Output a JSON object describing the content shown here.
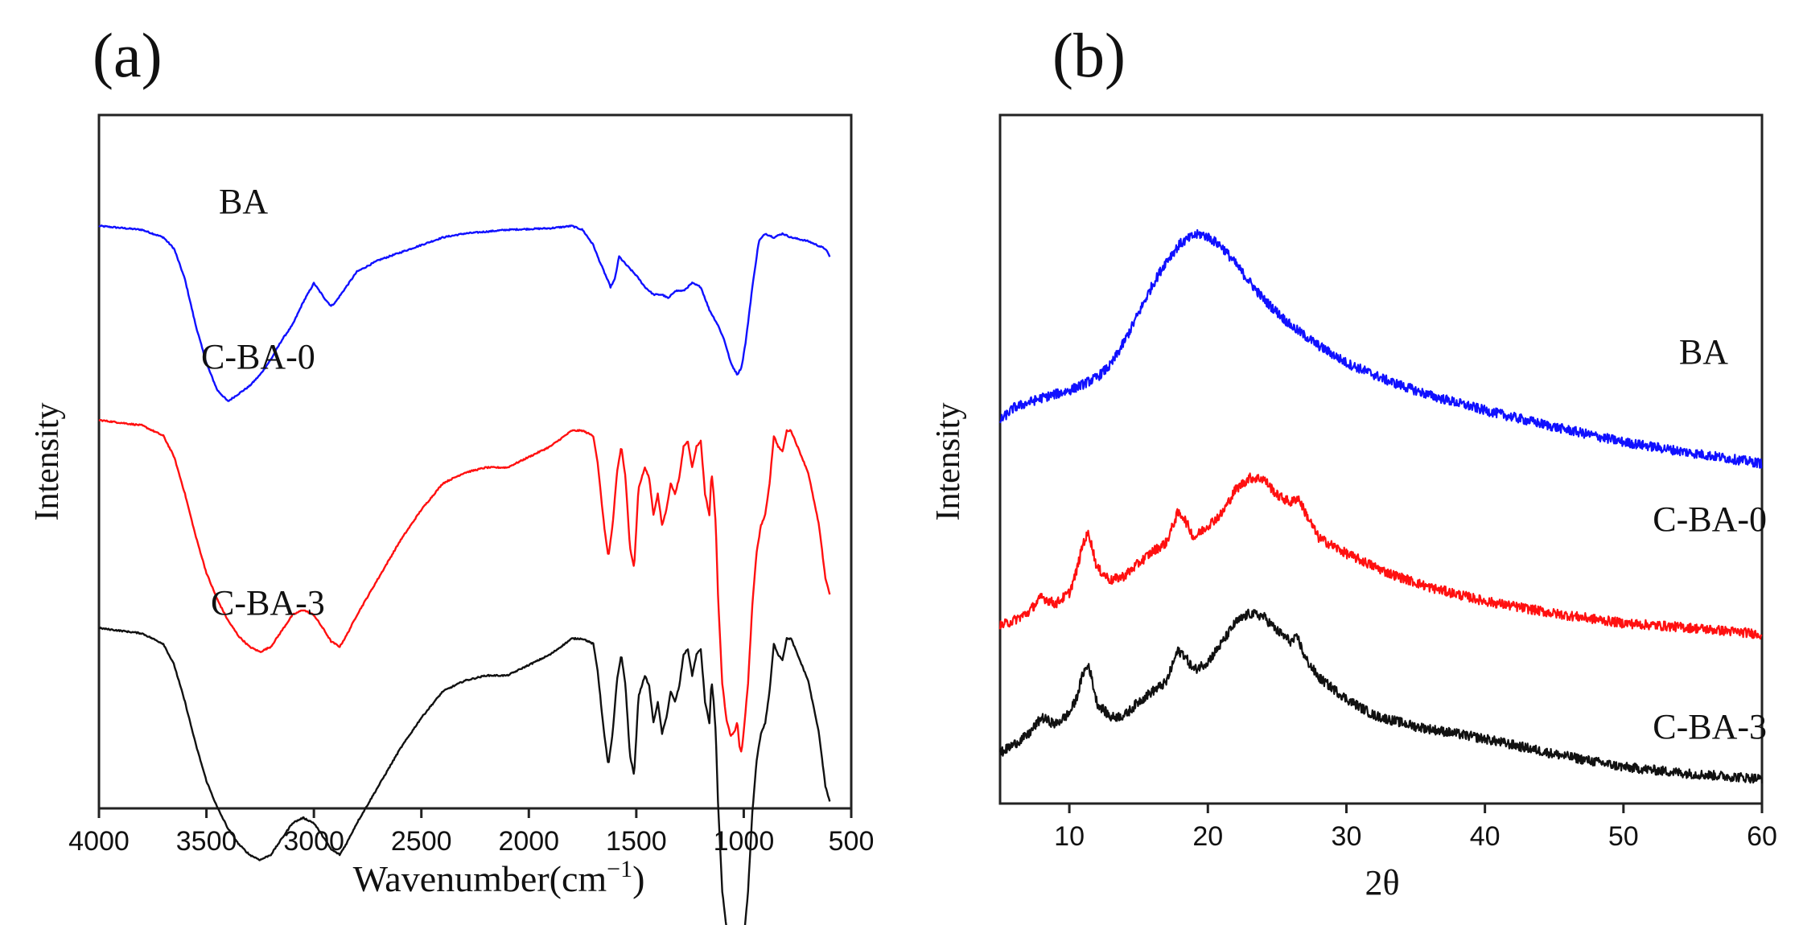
{
  "chart_data": [
    {
      "panel_label": "(a)",
      "type": "line",
      "xlabel_base": "Wavenumber(cm",
      "xlabel_exp": "−1",
      "xlabel_close": ")",
      "ylabel": "Intensity",
      "xlim": [
        4000,
        500
      ],
      "xticks": [
        "4000",
        "3500",
        "3000",
        "2500",
        "2000",
        "1500",
        "1000",
        "500"
      ],
      "yticks_shown": false,
      "series": [
        {
          "name": "BA",
          "color": "#1010ff",
          "offset": 0.84,
          "amp": 0.55,
          "x": [
            4000,
            3800,
            3700,
            3650,
            3600,
            3550,
            3500,
            3450,
            3400,
            3350,
            3300,
            3250,
            3200,
            3150,
            3100,
            3050,
            3000,
            2950,
            2920,
            2900,
            2850,
            2800,
            2700,
            2600,
            2500,
            2400,
            2300,
            2200,
            2100,
            2000,
            1900,
            1800,
            1750,
            1700,
            1680,
            1650,
            1620,
            1600,
            1580,
            1550,
            1500,
            1460,
            1420,
            1400,
            1380,
            1350,
            1320,
            1280,
            1240,
            1200,
            1160,
            1120,
            1090,
            1060,
            1030,
            1010,
            990,
            960,
            930,
            900,
            860,
            820,
            780,
            700,
            620,
            600
          ],
          "y": [
            0.0,
            0.01,
            0.03,
            0.06,
            0.14,
            0.26,
            0.36,
            0.43,
            0.46,
            0.44,
            0.42,
            0.39,
            0.35,
            0.3,
            0.26,
            0.2,
            0.15,
            0.19,
            0.21,
            0.2,
            0.16,
            0.12,
            0.09,
            0.07,
            0.05,
            0.03,
            0.02,
            0.015,
            0.01,
            0.008,
            0.006,
            0.0,
            0.01,
            0.05,
            0.08,
            0.12,
            0.16,
            0.14,
            0.08,
            0.1,
            0.13,
            0.16,
            0.18,
            0.18,
            0.18,
            0.19,
            0.17,
            0.17,
            0.15,
            0.16,
            0.22,
            0.26,
            0.3,
            0.36,
            0.39,
            0.37,
            0.3,
            0.16,
            0.04,
            0.02,
            0.03,
            0.02,
            0.03,
            0.04,
            0.06,
            0.08
          ]
        },
        {
          "name": "C-BA-0",
          "color": "#ff1010",
          "offset": 0.56,
          "amp": 0.76,
          "x": [
            4000,
            3800,
            3700,
            3650,
            3600,
            3550,
            3500,
            3450,
            3400,
            3350,
            3300,
            3250,
            3200,
            3150,
            3100,
            3050,
            3000,
            2950,
            2920,
            2880,
            2850,
            2800,
            2700,
            2600,
            2500,
            2400,
            2300,
            2200,
            2100,
            2000,
            1900,
            1800,
            1750,
            1700,
            1680,
            1650,
            1630,
            1610,
            1590,
            1570,
            1550,
            1530,
            1510,
            1490,
            1460,
            1440,
            1420,
            1400,
            1380,
            1360,
            1340,
            1320,
            1300,
            1280,
            1260,
            1240,
            1220,
            1200,
            1180,
            1160,
            1150,
            1140,
            1130,
            1120,
            1100,
            1080,
            1060,
            1040,
            1030,
            1020,
            1010,
            1000,
            980,
            960,
            940,
            920,
            900,
            880,
            860,
            840,
            820,
            800,
            780,
            750,
            700,
            650,
            620,
            600
          ],
          "y": [
            0.0,
            0.01,
            0.03,
            0.07,
            0.14,
            0.22,
            0.29,
            0.34,
            0.38,
            0.41,
            0.43,
            0.44,
            0.43,
            0.4,
            0.37,
            0.36,
            0.37,
            0.4,
            0.42,
            0.43,
            0.41,
            0.37,
            0.3,
            0.23,
            0.17,
            0.12,
            0.1,
            0.09,
            0.09,
            0.07,
            0.05,
            0.02,
            0.02,
            0.03,
            0.08,
            0.2,
            0.26,
            0.2,
            0.1,
            0.05,
            0.11,
            0.24,
            0.28,
            0.13,
            0.09,
            0.11,
            0.18,
            0.14,
            0.2,
            0.17,
            0.12,
            0.14,
            0.11,
            0.05,
            0.04,
            0.09,
            0.05,
            0.04,
            0.14,
            0.18,
            0.1,
            0.14,
            0.2,
            0.33,
            0.5,
            0.57,
            0.6,
            0.59,
            0.57,
            0.62,
            0.63,
            0.59,
            0.5,
            0.35,
            0.25,
            0.2,
            0.18,
            0.12,
            0.03,
            0.05,
            0.06,
            0.02,
            0.02,
            0.05,
            0.1,
            0.2,
            0.3,
            0.33
          ]
        },
        {
          "name": "C-BA-3",
          "color": "#111111",
          "offset": 0.26,
          "amp": 0.76,
          "x": [
            4000,
            3800,
            3700,
            3650,
            3600,
            3550,
            3500,
            3450,
            3400,
            3350,
            3300,
            3250,
            3200,
            3150,
            3100,
            3050,
            3000,
            2950,
            2920,
            2880,
            2850,
            2800,
            2700,
            2600,
            2500,
            2400,
            2300,
            2200,
            2100,
            2000,
            1900,
            1800,
            1750,
            1700,
            1680,
            1650,
            1630,
            1610,
            1590,
            1570,
            1550,
            1530,
            1510,
            1490,
            1460,
            1440,
            1420,
            1400,
            1380,
            1360,
            1340,
            1320,
            1300,
            1280,
            1260,
            1240,
            1220,
            1200,
            1180,
            1160,
            1150,
            1140,
            1130,
            1120,
            1100,
            1080,
            1060,
            1040,
            1030,
            1020,
            1010,
            1000,
            980,
            960,
            940,
            920,
            900,
            880,
            860,
            840,
            820,
            800,
            780,
            750,
            700,
            650,
            620,
            600
          ],
          "y": [
            0.0,
            0.01,
            0.03,
            0.07,
            0.14,
            0.22,
            0.29,
            0.34,
            0.38,
            0.41,
            0.43,
            0.44,
            0.43,
            0.4,
            0.37,
            0.36,
            0.37,
            0.4,
            0.42,
            0.43,
            0.41,
            0.37,
            0.3,
            0.23,
            0.17,
            0.12,
            0.1,
            0.09,
            0.09,
            0.07,
            0.05,
            0.02,
            0.02,
            0.03,
            0.08,
            0.2,
            0.26,
            0.2,
            0.1,
            0.05,
            0.11,
            0.24,
            0.28,
            0.13,
            0.09,
            0.11,
            0.18,
            0.14,
            0.2,
            0.17,
            0.12,
            0.14,
            0.11,
            0.05,
            0.04,
            0.09,
            0.05,
            0.04,
            0.14,
            0.18,
            0.1,
            0.14,
            0.2,
            0.33,
            0.5,
            0.57,
            0.6,
            0.59,
            0.57,
            0.62,
            0.63,
            0.59,
            0.5,
            0.35,
            0.25,
            0.2,
            0.18,
            0.12,
            0.03,
            0.05,
            0.06,
            0.02,
            0.02,
            0.05,
            0.1,
            0.2,
            0.3,
            0.33
          ]
        }
      ]
    },
    {
      "panel_label": "(b)",
      "type": "line",
      "xlabel": "2θ",
      "ylabel": "Intensity",
      "xlim": [
        5,
        60
      ],
      "xticks": [
        "10",
        "20",
        "30",
        "40",
        "50",
        "60"
      ],
      "yticks_shown": false,
      "series": [
        {
          "name": "BA",
          "color": "#1010ff",
          "x": [
            5,
            6,
            8,
            10,
            11,
            12,
            13,
            14,
            15,
            16,
            17,
            18,
            19,
            19.5,
            20,
            21,
            22,
            23,
            24,
            26,
            28,
            30,
            33,
            36,
            40,
            45,
            50,
            55,
            60
          ],
          "y": [
            0.556,
            0.575,
            0.589,
            0.6,
            0.609,
            0.619,
            0.637,
            0.672,
            0.712,
            0.753,
            0.788,
            0.813,
            0.825,
            0.827,
            0.823,
            0.809,
            0.784,
            0.758,
            0.733,
            0.694,
            0.665,
            0.64,
            0.614,
            0.593,
            0.571,
            0.547,
            0.525,
            0.509,
            0.494
          ]
        },
        {
          "name": "C-BA-0",
          "color": "#ff1010",
          "x": [
            5,
            6,
            7,
            8,
            9,
            10,
            10.5,
            11,
            11.4,
            12,
            13,
            14,
            15,
            16,
            17,
            17.8,
            18.2,
            19,
            20,
            21,
            22,
            23,
            24,
            25,
            26,
            26.5,
            27,
            28,
            30,
            33,
            36,
            40,
            45,
            50,
            55,
            60
          ],
          "y": [
            0.258,
            0.266,
            0.277,
            0.3,
            0.29,
            0.306,
            0.336,
            0.379,
            0.393,
            0.342,
            0.324,
            0.331,
            0.349,
            0.366,
            0.379,
            0.421,
            0.418,
            0.386,
            0.404,
            0.421,
            0.456,
            0.473,
            0.472,
            0.448,
            0.437,
            0.445,
            0.424,
            0.386,
            0.363,
            0.335,
            0.314,
            0.294,
            0.276,
            0.262,
            0.255,
            0.246
          ]
        },
        {
          "name": "C-BA-3",
          "color": "#111111",
          "x": [
            5,
            6,
            7,
            8,
            9,
            10,
            10.5,
            11,
            11.4,
            12,
            13,
            14,
            15,
            16,
            17,
            17.8,
            18.2,
            19,
            20,
            21,
            22,
            23,
            24,
            25,
            26,
            26.5,
            27,
            28,
            30,
            32,
            35,
            40,
            45,
            50,
            55,
            60
          ],
          "y": [
            0.073,
            0.086,
            0.099,
            0.125,
            0.115,
            0.131,
            0.152,
            0.19,
            0.201,
            0.146,
            0.125,
            0.128,
            0.148,
            0.163,
            0.176,
            0.221,
            0.218,
            0.194,
            0.206,
            0.233,
            0.263,
            0.276,
            0.272,
            0.251,
            0.235,
            0.241,
            0.212,
            0.183,
            0.152,
            0.128,
            0.112,
            0.094,
            0.072,
            0.053,
            0.043,
            0.036
          ]
        }
      ]
    }
  ]
}
